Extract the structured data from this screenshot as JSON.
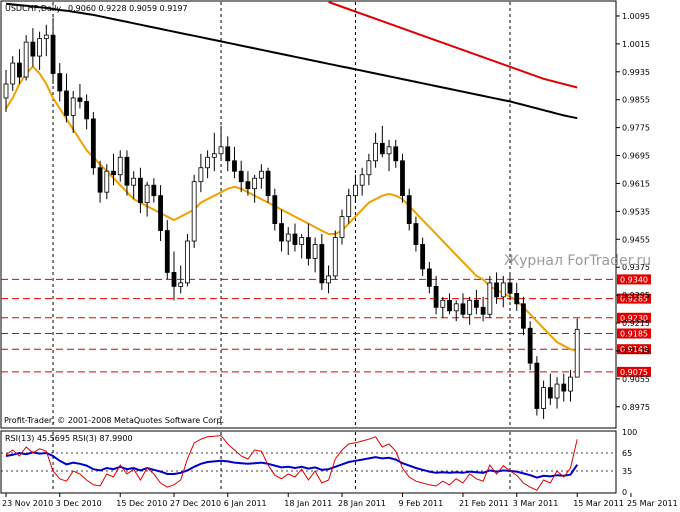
{
  "header": {
    "symbol_label": "USDCHF,Daily",
    "ohlc_text": "0.9060 0.9228 0.9059 0.9197"
  },
  "watermark": "Журнал ForTrader.ru",
  "copyright": "Profit-Trader, © 2001-2008 MetaQuotes Software Corp.",
  "rsi_header": "RSI(13) 45.5695 RSI(3) 87.9900",
  "colors": {
    "background": "#ffffff",
    "candle_up": "#ffffff",
    "candle_down": "#000000",
    "ma_fast": "#f0a000",
    "ma_slow": "#000000",
    "ma_long": "#e00000",
    "level_line": "#e00000",
    "rsi_fast": "#e00000",
    "rsi_slow": "#0000cc"
  },
  "chart_data": [
    {
      "type": "candlestick",
      "title": "USDCHF,Daily",
      "y_ticks": [
        "1.0095",
        "1.0015",
        "0.9935",
        "0.9855",
        "0.9775",
        "0.9695",
        "0.9615",
        "0.9535",
        "0.9455",
        "0.9375",
        "0.9295",
        "0.9215",
        "0.9135",
        "0.9055",
        "0.8975"
      ],
      "ylim": [
        0.8917,
        1.0135
      ],
      "x_ticks": [
        "23 Nov 2010",
        "3 Dec 2010",
        "15 Dec 2010",
        "27 Dec 2010",
        "6 Jan 2011",
        "18 Jan 2011",
        "28 Jan 2011",
        "9 Feb 2011",
        "21 Feb 2011",
        "3 Mar 2011",
        "15 Mar 2011",
        "25 Mar 2011"
      ],
      "x_tick_bar_index": [
        0,
        8,
        17,
        25,
        33,
        42,
        50,
        59,
        68,
        76,
        85,
        93
      ],
      "vertical_separators_bar_index": [
        7,
        32,
        52,
        75
      ],
      "levels": [
        {
          "value": 0.934,
          "label": "0.9340"
        },
        {
          "value": 0.9285,
          "label": "0.9285"
        },
        {
          "value": 0.923,
          "label": "0.9230"
        },
        {
          "value": 0.9185,
          "label": "0.9185"
        },
        {
          "value": 0.914,
          "label": "0.9140"
        },
        {
          "value": 0.9075,
          "label": "0.9075"
        }
      ],
      "candles": [
        {
          "o": 0.986,
          "h": 0.994,
          "l": 0.982,
          "c": 0.99
        },
        {
          "o": 0.99,
          "h": 0.998,
          "l": 0.988,
          "c": 0.996
        },
        {
          "o": 0.996,
          "h": 1.0,
          "l": 0.99,
          "c": 0.992
        },
        {
          "o": 0.992,
          "h": 1.004,
          "l": 0.991,
          "c": 1.002
        },
        {
          "o": 1.002,
          "h": 1.006,
          "l": 0.995,
          "c": 0.998
        },
        {
          "o": 0.998,
          "h": 1.005,
          "l": 0.994,
          "c": 1.003
        },
        {
          "o": 1.003,
          "h": 1.007,
          "l": 0.998,
          "c": 1.004
        },
        {
          "o": 1.004,
          "h": 1.009,
          "l": 0.99,
          "c": 0.993
        },
        {
          "o": 0.993,
          "h": 0.996,
          "l": 0.985,
          "c": 0.988
        },
        {
          "o": 0.988,
          "h": 0.993,
          "l": 0.979,
          "c": 0.981
        },
        {
          "o": 0.981,
          "h": 0.988,
          "l": 0.976,
          "c": 0.986
        },
        {
          "o": 0.986,
          "h": 0.99,
          "l": 0.983,
          "c": 0.985
        },
        {
          "o": 0.985,
          "h": 0.987,
          "l": 0.977,
          "c": 0.98
        },
        {
          "o": 0.98,
          "h": 0.982,
          "l": 0.964,
          "c": 0.966
        },
        {
          "o": 0.966,
          "h": 0.968,
          "l": 0.956,
          "c": 0.959
        },
        {
          "o": 0.959,
          "h": 0.967,
          "l": 0.957,
          "c": 0.965
        },
        {
          "o": 0.965,
          "h": 0.97,
          "l": 0.961,
          "c": 0.964
        },
        {
          "o": 0.964,
          "h": 0.971,
          "l": 0.962,
          "c": 0.969
        },
        {
          "o": 0.969,
          "h": 0.971,
          "l": 0.958,
          "c": 0.961
        },
        {
          "o": 0.961,
          "h": 0.965,
          "l": 0.957,
          "c": 0.963
        },
        {
          "o": 0.963,
          "h": 0.966,
          "l": 0.953,
          "c": 0.956
        },
        {
          "o": 0.956,
          "h": 0.962,
          "l": 0.952,
          "c": 0.961
        },
        {
          "o": 0.961,
          "h": 0.963,
          "l": 0.956,
          "c": 0.958
        },
        {
          "o": 0.958,
          "h": 0.961,
          "l": 0.945,
          "c": 0.948
        },
        {
          "o": 0.948,
          "h": 0.951,
          "l": 0.934,
          "c": 0.936
        },
        {
          "o": 0.936,
          "h": 0.942,
          "l": 0.928,
          "c": 0.932
        },
        {
          "o": 0.932,
          "h": 0.938,
          "l": 0.93,
          "c": 0.933
        },
        {
          "o": 0.933,
          "h": 0.947,
          "l": 0.932,
          "c": 0.945
        },
        {
          "o": 0.945,
          "h": 0.964,
          "l": 0.943,
          "c": 0.962
        },
        {
          "o": 0.962,
          "h": 0.97,
          "l": 0.959,
          "c": 0.966
        },
        {
          "o": 0.966,
          "h": 0.971,
          "l": 0.963,
          "c": 0.969
        },
        {
          "o": 0.969,
          "h": 0.976,
          "l": 0.965,
          "c": 0.97
        },
        {
          "o": 0.97,
          "h": 0.978,
          "l": 0.968,
          "c": 0.972
        },
        {
          "o": 0.972,
          "h": 0.975,
          "l": 0.965,
          "c": 0.968
        },
        {
          "o": 0.968,
          "h": 0.972,
          "l": 0.963,
          "c": 0.965
        },
        {
          "o": 0.965,
          "h": 0.968,
          "l": 0.959,
          "c": 0.962
        },
        {
          "o": 0.962,
          "h": 0.965,
          "l": 0.958,
          "c": 0.96
        },
        {
          "o": 0.96,
          "h": 0.964,
          "l": 0.956,
          "c": 0.963
        },
        {
          "o": 0.963,
          "h": 0.967,
          "l": 0.96,
          "c": 0.965
        },
        {
          "o": 0.965,
          "h": 0.966,
          "l": 0.956,
          "c": 0.958
        },
        {
          "o": 0.958,
          "h": 0.96,
          "l": 0.948,
          "c": 0.95
        },
        {
          "o": 0.95,
          "h": 0.954,
          "l": 0.942,
          "c": 0.945
        },
        {
          "o": 0.945,
          "h": 0.949,
          "l": 0.941,
          "c": 0.947
        },
        {
          "o": 0.947,
          "h": 0.95,
          "l": 0.942,
          "c": 0.944
        },
        {
          "o": 0.944,
          "h": 0.947,
          "l": 0.94,
          "c": 0.946
        },
        {
          "o": 0.946,
          "h": 0.95,
          "l": 0.938,
          "c": 0.94
        },
        {
          "o": 0.94,
          "h": 0.946,
          "l": 0.936,
          "c": 0.944
        },
        {
          "o": 0.944,
          "h": 0.947,
          "l": 0.931,
          "c": 0.933
        },
        {
          "o": 0.933,
          "h": 0.938,
          "l": 0.93,
          "c": 0.935
        },
        {
          "o": 0.935,
          "h": 0.948,
          "l": 0.934,
          "c": 0.946
        },
        {
          "o": 0.946,
          "h": 0.954,
          "l": 0.944,
          "c": 0.952
        },
        {
          "o": 0.952,
          "h": 0.96,
          "l": 0.95,
          "c": 0.958
        },
        {
          "o": 0.958,
          "h": 0.964,
          "l": 0.956,
          "c": 0.961
        },
        {
          "o": 0.961,
          "h": 0.966,
          "l": 0.958,
          "c": 0.964
        },
        {
          "o": 0.964,
          "h": 0.97,
          "l": 0.961,
          "c": 0.968
        },
        {
          "o": 0.968,
          "h": 0.976,
          "l": 0.966,
          "c": 0.973
        },
        {
          "o": 0.973,
          "h": 0.978,
          "l": 0.969,
          "c": 0.97
        },
        {
          "o": 0.97,
          "h": 0.974,
          "l": 0.965,
          "c": 0.972
        },
        {
          "o": 0.972,
          "h": 0.974,
          "l": 0.966,
          "c": 0.968
        },
        {
          "o": 0.968,
          "h": 0.97,
          "l": 0.956,
          "c": 0.958
        },
        {
          "o": 0.958,
          "h": 0.96,
          "l": 0.948,
          "c": 0.95
        },
        {
          "o": 0.95,
          "h": 0.952,
          "l": 0.942,
          "c": 0.944
        },
        {
          "o": 0.944,
          "h": 0.946,
          "l": 0.935,
          "c": 0.937
        },
        {
          "o": 0.937,
          "h": 0.939,
          "l": 0.93,
          "c": 0.932
        },
        {
          "o": 0.932,
          "h": 0.935,
          "l": 0.924,
          "c": 0.926
        },
        {
          "o": 0.926,
          "h": 0.929,
          "l": 0.923,
          "c": 0.928
        },
        {
          "o": 0.928,
          "h": 0.93,
          "l": 0.924,
          "c": 0.925
        },
        {
          "o": 0.925,
          "h": 0.928,
          "l": 0.922,
          "c": 0.927
        },
        {
          "o": 0.927,
          "h": 0.93,
          "l": 0.923,
          "c": 0.924
        },
        {
          "o": 0.924,
          "h": 0.929,
          "l": 0.921,
          "c": 0.928
        },
        {
          "o": 0.928,
          "h": 0.931,
          "l": 0.924,
          "c": 0.926
        },
        {
          "o": 0.926,
          "h": 0.929,
          "l": 0.922,
          "c": 0.924
        },
        {
          "o": 0.924,
          "h": 0.935,
          "l": 0.923,
          "c": 0.933
        },
        {
          "o": 0.933,
          "h": 0.936,
          "l": 0.927,
          "c": 0.929
        },
        {
          "o": 0.929,
          "h": 0.935,
          "l": 0.926,
          "c": 0.933
        },
        {
          "o": 0.933,
          "h": 0.936,
          "l": 0.928,
          "c": 0.93
        },
        {
          "o": 0.93,
          "h": 0.933,
          "l": 0.925,
          "c": 0.927
        },
        {
          "o": 0.927,
          "h": 0.929,
          "l": 0.918,
          "c": 0.92
        },
        {
          "o": 0.92,
          "h": 0.922,
          "l": 0.908,
          "c": 0.91
        },
        {
          "o": 0.91,
          "h": 0.912,
          "l": 0.895,
          "c": 0.897
        },
        {
          "o": 0.897,
          "h": 0.905,
          "l": 0.894,
          "c": 0.903
        },
        {
          "o": 0.903,
          "h": 0.907,
          "l": 0.898,
          "c": 0.9
        },
        {
          "o": 0.9,
          "h": 0.906,
          "l": 0.897,
          "c": 0.904
        },
        {
          "o": 0.904,
          "h": 0.907,
          "l": 0.899,
          "c": 0.902
        },
        {
          "o": 0.902,
          "h": 0.908,
          "l": 0.899,
          "c": 0.906
        },
        {
          "o": 0.906,
          "h": 0.9228,
          "l": 0.9059,
          "c": 0.9197
        }
      ],
      "ma_fast": [
        0.983,
        0.986,
        0.99,
        0.993,
        0.995,
        0.993,
        0.99,
        0.986,
        0.983,
        0.98,
        0.977,
        0.974,
        0.971,
        0.969,
        0.967,
        0.965,
        0.963,
        0.961,
        0.959,
        0.957,
        0.956,
        0.955,
        0.954,
        0.953,
        0.952,
        0.951,
        0.952,
        0.953,
        0.954,
        0.956,
        0.957,
        0.958,
        0.959,
        0.96,
        0.9605,
        0.96,
        0.959,
        0.958,
        0.957,
        0.956,
        0.955,
        0.954,
        0.953,
        0.952,
        0.951,
        0.95,
        0.949,
        0.948,
        0.947,
        0.947,
        0.948,
        0.95,
        0.952,
        0.954,
        0.956,
        0.957,
        0.958,
        0.9585,
        0.958,
        0.957,
        0.955,
        0.953,
        0.951,
        0.949,
        0.947,
        0.945,
        0.943,
        0.941,
        0.939,
        0.937,
        0.935,
        0.934,
        0.932,
        0.931,
        0.93,
        0.929,
        0.928,
        0.926,
        0.924,
        0.922,
        0.92,
        0.918,
        0.916,
        0.915,
        0.914,
        0.9135
      ],
      "ma_slow": [
        1.013,
        1.0128,
        1.0126,
        1.0124,
        1.0122,
        1.012,
        1.0118,
        1.0115,
        1.0112,
        1.011,
        1.0107,
        1.0104,
        1.0101,
        1.0098,
        1.0094,
        1.009,
        1.0086,
        1.0082,
        1.0078,
        1.0074,
        1.007,
        1.0066,
        1.0062,
        1.0058,
        1.0054,
        1.005,
        1.0046,
        1.0042,
        1.0038,
        1.0034,
        1.003,
        1.0026,
        1.0022,
        1.0018,
        1.0014,
        1.001,
        1.0006,
        1.0002,
        0.9998,
        0.9994,
        0.999,
        0.9986,
        0.9982,
        0.9978,
        0.9974,
        0.997,
        0.9966,
        0.9962,
        0.9958,
        0.9954,
        0.995,
        0.9946,
        0.9942,
        0.9938,
        0.9934,
        0.993,
        0.9926,
        0.9922,
        0.9918,
        0.9914,
        0.991,
        0.9906,
        0.9902,
        0.9898,
        0.9894,
        0.989,
        0.9886,
        0.9882,
        0.9878,
        0.9874,
        0.987,
        0.9866,
        0.9862,
        0.9858,
        0.9854,
        0.985,
        0.9845,
        0.984,
        0.9835,
        0.983,
        0.9825,
        0.982,
        0.9815,
        0.981,
        0.9806,
        0.9802
      ],
      "ma_long_segment": {
        "start_bar": 48,
        "values": [
          1.0135,
          1.008,
          1.0025,
          0.997,
          0.9915,
          0.989
        ]
      },
      "ma_long_bar_index": [
        48,
        56,
        64,
        72,
        80,
        85
      ]
    },
    {
      "type": "line",
      "title": "RSI(13) 45.5695 RSI(3) 87.9900",
      "ylim": [
        0,
        100
      ],
      "y_ticks": [
        "100",
        "65",
        "35",
        "0"
      ],
      "y_tick_values": [
        100,
        65,
        35,
        0
      ],
      "series": [
        {
          "name": "RSI(13)",
          "values": [
            60,
            62,
            65,
            63,
            66,
            64,
            65,
            60,
            52,
            46,
            49,
            47,
            44,
            38,
            36,
            40,
            38,
            42,
            38,
            40,
            36,
            40,
            37,
            34,
            30,
            30,
            32,
            36,
            42,
            47,
            50,
            51,
            52,
            51,
            49,
            48,
            47,
            48,
            49,
            47,
            44,
            41,
            42,
            40,
            42,
            39,
            41,
            37,
            38,
            42,
            46,
            50,
            52,
            54,
            56,
            58,
            56,
            57,
            54,
            48,
            44,
            40,
            37,
            34,
            32,
            33,
            32,
            33,
            32,
            34,
            33,
            32,
            36,
            34,
            36,
            35,
            34,
            31,
            28,
            24,
            27,
            26,
            28,
            27,
            29,
            45.57
          ]
        },
        {
          "name": "RSI(3)",
          "values": [
            62,
            70,
            60,
            75,
            65,
            72,
            68,
            35,
            22,
            18,
            35,
            30,
            20,
            12,
            10,
            30,
            25,
            45,
            30,
            38,
            20,
            40,
            30,
            15,
            8,
            12,
            20,
            55,
            82,
            88,
            92,
            93,
            94,
            80,
            70,
            60,
            55,
            70,
            68,
            45,
            28,
            22,
            30,
            25,
            38,
            20,
            35,
            15,
            20,
            55,
            70,
            80,
            82,
            85,
            88,
            92,
            75,
            80,
            68,
            40,
            25,
            18,
            15,
            12,
            10,
            18,
            12,
            22,
            15,
            30,
            22,
            18,
            45,
            30,
            44,
            35,
            28,
            15,
            8,
            3,
            20,
            15,
            35,
            25,
            40,
            87.99
          ]
        }
      ],
      "levels": [
        65,
        35
      ]
    }
  ]
}
